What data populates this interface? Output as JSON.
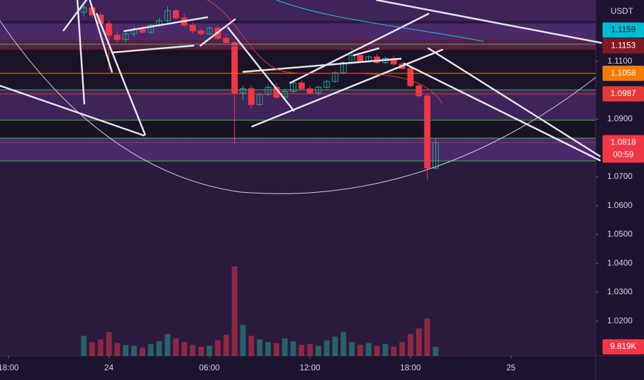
{
  "chart_data": {
    "type": "candlestick",
    "currency": "USDT",
    "x": [
      -1.5,
      -1,
      -0.5,
      0,
      0.5,
      1,
      1.5,
      2,
      2.5,
      3,
      3.5,
      4,
      4.5,
      5,
      5.5,
      6,
      6.5,
      7,
      7.5,
      8,
      8.5,
      9,
      9.5,
      10,
      10.5,
      11,
      11.5,
      12,
      12.5,
      13,
      13.5,
      14,
      14.5,
      15,
      15.5,
      16,
      16.5,
      17,
      17.5,
      18,
      18.5,
      19,
      19.5
    ],
    "open": [
      1.127,
      1.1285,
      1.126,
      1.123,
      1.119,
      1.1175,
      1.1195,
      1.121,
      1.12,
      1.1225,
      1.124,
      1.1275,
      1.125,
      1.1225,
      1.1205,
      1.1195,
      1.1215,
      1.118,
      1.1165,
      1.099,
      1.1005,
      1.095,
      1.0985,
      1.101,
      1.0975,
      1.0995,
      1.1025,
      1.1005,
      1.099,
      1.101,
      1.103,
      1.106,
      1.1095,
      1.112,
      1.11,
      1.1115,
      1.1095,
      1.111,
      1.109,
      1.1075,
      1.1015,
      1.098,
      1.073
    ],
    "high": [
      1.13,
      1.1295,
      1.127,
      1.124,
      1.1205,
      1.12,
      1.122,
      1.1225,
      1.123,
      1.125,
      1.129,
      1.128,
      1.1265,
      1.1235,
      1.1215,
      1.122,
      1.1225,
      1.1195,
      1.117,
      1.1015,
      1.1015,
      1.099,
      1.102,
      1.1025,
      1.1005,
      1.103,
      1.1035,
      1.1015,
      1.1015,
      1.1035,
      1.1065,
      1.11,
      1.1145,
      1.1125,
      1.112,
      1.1125,
      1.1115,
      1.112,
      1.1095,
      1.108,
      1.1025,
      1.0985,
      1.0832
    ],
    "low": [
      1.1255,
      1.125,
      1.122,
      1.107,
      1.1165,
      1.1165,
      1.1185,
      1.1195,
      1.1195,
      1.122,
      1.1235,
      1.1245,
      1.122,
      1.1195,
      1.119,
      1.119,
      1.1175,
      1.116,
      1.0815,
      1.0965,
      1.0935,
      1.0945,
      1.098,
      1.097,
      1.0965,
      1.099,
      1.1,
      1.0985,
      1.098,
      1.1005,
      1.1025,
      1.1055,
      1.109,
      1.1095,
      1.1095,
      1.109,
      1.109,
      1.1085,
      1.107,
      1.101,
      1.0975,
      1.069,
      1.0725
    ],
    "close": [
      1.1285,
      1.126,
      1.123,
      1.119,
      1.1175,
      1.1195,
      1.121,
      1.12,
      1.1225,
      1.124,
      1.1275,
      1.125,
      1.1225,
      1.1205,
      1.1195,
      1.1215,
      1.118,
      1.1165,
      1.099,
      1.1005,
      1.095,
      1.0985,
      1.101,
      1.0975,
      1.0995,
      1.1025,
      1.1005,
      1.099,
      1.101,
      1.103,
      1.106,
      1.1095,
      1.112,
      1.11,
      1.1115,
      1.1095,
      1.111,
      1.109,
      1.1075,
      1.1015,
      1.098,
      1.073,
      1.0818
    ],
    "volume": [
      22000,
      15000,
      18000,
      26000,
      14000,
      12000,
      11000,
      9000,
      13000,
      16000,
      24000,
      19000,
      15000,
      12000,
      10000,
      11000,
      17000,
      23000,
      98000,
      34000,
      22000,
      18000,
      15000,
      14000,
      19000,
      16000,
      12000,
      13000,
      11000,
      17000,
      21000,
      26000,
      15000,
      12000,
      14000,
      11000,
      13000,
      10000,
      15000,
      24000,
      30000,
      41000,
      9819
    ],
    "up_color": "#22ab94",
    "down_color": "#f23645",
    "xlim": [
      -6.5,
      29.05
    ],
    "xticks": [
      {
        "value": -6,
        "label": "18:00"
      },
      {
        "value": 0,
        "label": "24"
      },
      {
        "value": 6,
        "label": "06:00"
      },
      {
        "value": 12,
        "label": "12:00"
      },
      {
        "value": 18,
        "label": "18:00"
      },
      {
        "value": 24,
        "label": "25"
      }
    ],
    "ylim": [
      1.008,
      1.1312
    ],
    "yticks": [
      {
        "value": 1.11,
        "label": "1.1100"
      },
      {
        "value": 1.09,
        "label": "1.0900"
      },
      {
        "value": 1.07,
        "label": "1.0700"
      },
      {
        "value": 1.06,
        "label": "1.0600"
      },
      {
        "value": 1.05,
        "label": "1.0500"
      },
      {
        "value": 1.04,
        "label": "1.0400"
      },
      {
        "value": 1.03,
        "label": "1.0300"
      },
      {
        "value": 1.02,
        "label": "1.0200"
      }
    ],
    "volume_lim": [
      0,
      390000
    ],
    "price_labels": [
      {
        "value": 1.1159,
        "label": "1.1159",
        "color": "#00bcd4"
      },
      {
        "value": 1.1153,
        "label": "1.1153",
        "color": "#801922"
      },
      {
        "value": 1.1058,
        "label": "1.1058",
        "color": "#f57c00"
      },
      {
        "value": 1.0987,
        "label": "1.0987",
        "color": "#e53935"
      },
      {
        "value": 1.0818,
        "label": "1.0818",
        "color": "#f23645"
      }
    ],
    "countdown": "00:59",
    "volume_label": {
      "value": 9819,
      "label": "9.819K",
      "color": "#f23645"
    }
  }
}
